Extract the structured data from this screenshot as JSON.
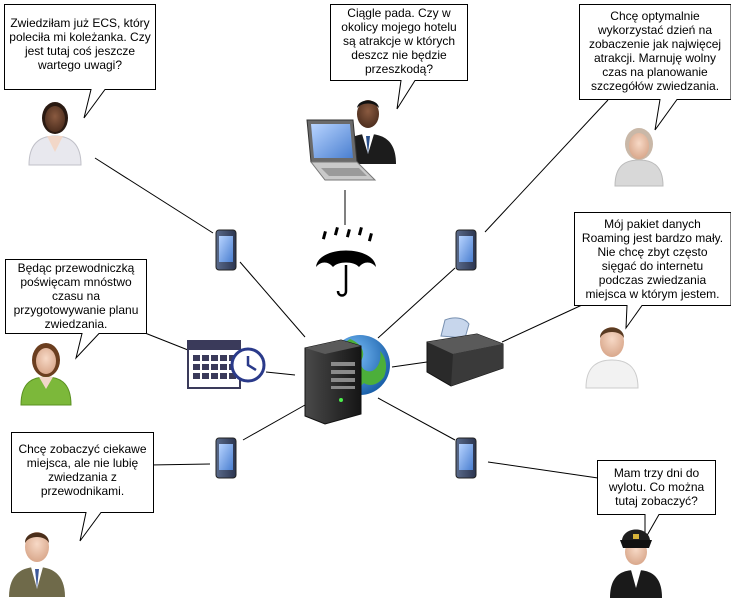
{
  "bubbles": {
    "top_left": "Zwiedziłam już ECS, który\npoleciła mi koleżanka. Czy\njest tutaj coś jeszcze\nwartego uwagi?",
    "top_center": "Ciągle pada. Czy w\nokolicy mojego hotelu\nsą atrakcje w których\ndeszcz nie będzie\nprzeszkodą?",
    "top_right": "Chcę optymalnie\nwykorzystać dzień na\nzobaczenie jak najwięcej\natrakcji. Marnuję wolny\nczas na planowanie\nszczegółów zwiedzania.",
    "mid_left": "Będąc przewodniczką\npoświęcam mnóstwo\nczasu na\nprzygotowywanie planu\nzwiedzania.",
    "mid_right": "Mój pakiet danych\nRoaming jest bardzo mały.\nNie chcę zbyt często\nsięgać do internetu\npodczas zwiedzania\nmiejsca w którym jestem.",
    "bottom_left": "Chcę zobaczyć ciekawe\nmiejsca, ale nie lubię\nzwiedzania z\nprzewodnikami.",
    "bottom_right": "Mam trzy dni do\nwylotu. Co można\ntutaj zobaczyć?"
  },
  "colors": {
    "line": "#000000",
    "bubble_fill": "#ffffff",
    "globe_ocean": "#2e7fc8",
    "globe_land": "#4caf3a",
    "server_body": "#2a2a2a"
  },
  "icons": [
    "server-icon",
    "globe-icon",
    "umbrella-icon",
    "laptop-icon",
    "printer-icon",
    "calendar-icon",
    "clock-icon",
    "phone-icon",
    "person-icon"
  ]
}
